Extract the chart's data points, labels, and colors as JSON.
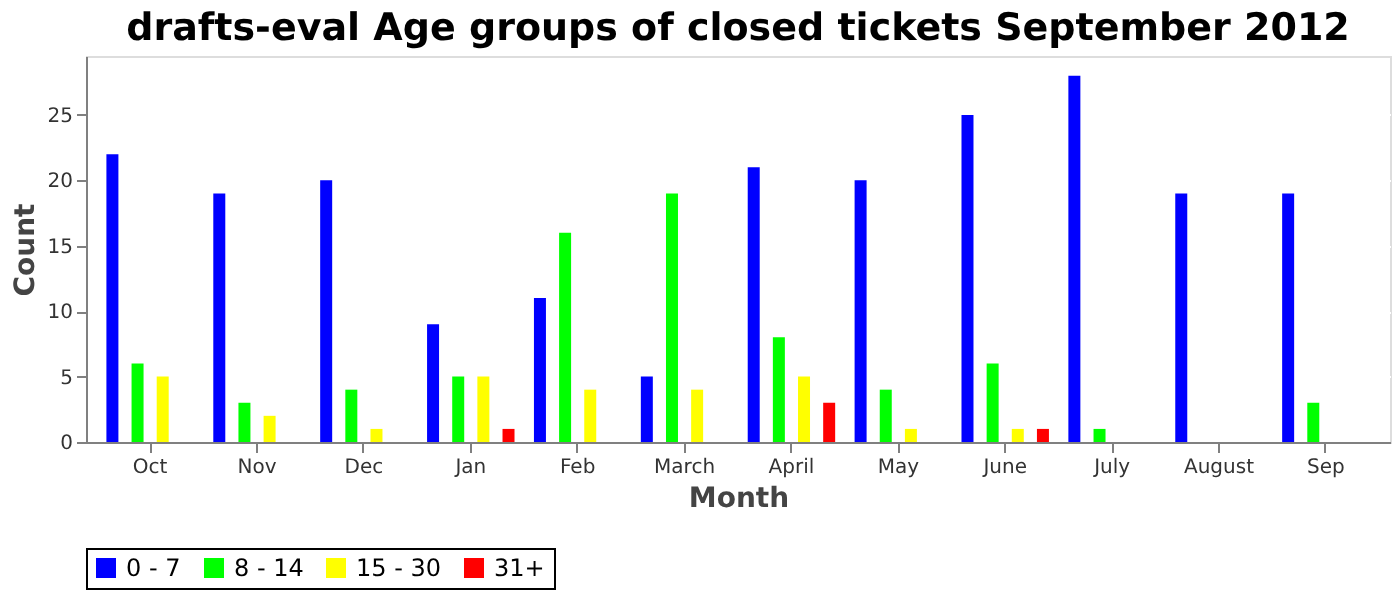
{
  "chart_data": {
    "type": "bar",
    "title": "drafts-eval Age groups of closed tickets September 2012",
    "xlabel": "Month",
    "ylabel": "Count",
    "categories": [
      "Oct",
      "Nov",
      "Dec",
      "Jan",
      "Feb",
      "March",
      "April",
      "May",
      "June",
      "July",
      "August",
      "Sep"
    ],
    "series": [
      {
        "name": "0 - 7",
        "color": "#0000ff",
        "values": [
          22,
          19,
          20,
          9,
          11,
          5,
          21,
          20,
          25,
          28,
          19,
          19
        ]
      },
      {
        "name": "8 - 14",
        "color": "#00ff00",
        "values": [
          6,
          3,
          4,
          5,
          16,
          19,
          8,
          4,
          6,
          1,
          0,
          3
        ]
      },
      {
        "name": "15 - 30",
        "color": "#ffff00",
        "values": [
          5,
          2,
          1,
          5,
          4,
          4,
          5,
          1,
          1,
          0,
          0,
          0
        ]
      },
      {
        "name": "31+",
        "color": "#ff0000",
        "values": [
          0,
          0,
          0,
          1,
          0,
          0,
          3,
          0,
          1,
          0,
          0,
          0
        ]
      }
    ],
    "ylim": [
      0,
      29.5
    ],
    "yticks": [
      0,
      5,
      10,
      15,
      20,
      25
    ],
    "grid": "y",
    "legend": "bottom"
  }
}
